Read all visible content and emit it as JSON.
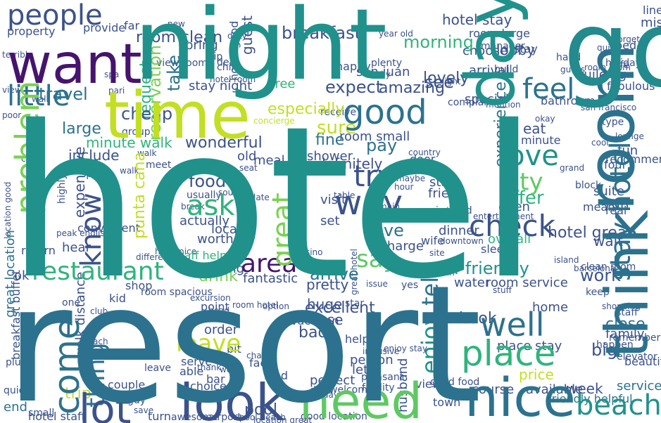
{
  "palette": {
    "purple": "#46146e",
    "indigo": "#3b528b",
    "blue": "#2c728e",
    "teal": "#21918c",
    "green": "#2fb47c",
    "lime": "#7ad151",
    "yellow": "#bddf26",
    "bright_yellow": "#d8e219"
  },
  "words": [
    {
      "text": "hotel",
      "color": "#21918c"
    },
    {
      "text": "resort",
      "color": "#2c728e"
    },
    {
      "text": "night",
      "color": "#21918c"
    },
    {
      "text": "time",
      "color": "#c2df23"
    },
    {
      "text": "want",
      "color": "#46146e"
    },
    {
      "text": "go",
      "color": "#238a8d"
    },
    {
      "text": "day",
      "color": "#21918c"
    },
    {
      "text": "room",
      "color": "#2c728e"
    },
    {
      "text": "think",
      "color": "#2c728e"
    },
    {
      "text": "stay hotel",
      "color": "#2c728e"
    },
    {
      "text": "people",
      "color": "#3b528b"
    },
    {
      "text": "good",
      "color": "#2c728e"
    },
    {
      "text": "problem",
      "color": "#7ad151"
    },
    {
      "text": "little",
      "color": "#2c728e"
    },
    {
      "text": "look",
      "color": "#3b528b"
    },
    {
      "text": "need",
      "color": "#5ec962"
    },
    {
      "text": "nice",
      "color": "#2c728e"
    },
    {
      "text": "lot",
      "color": "#3b528b"
    },
    {
      "text": "come",
      "color": "#2c728e"
    },
    {
      "text": "place",
      "color": "#2fb47c"
    },
    {
      "text": "well",
      "color": "#2c728e"
    },
    {
      "text": "beach",
      "color": "#21918c"
    },
    {
      "text": "check",
      "color": "#3b528b"
    },
    {
      "text": "restaurant",
      "color": "#2fb47c"
    },
    {
      "text": "great",
      "color": "#7ad151"
    },
    {
      "text": "way",
      "color": "#3b528b"
    },
    {
      "text": "try",
      "color": "#3b528b"
    },
    {
      "text": "ask",
      "color": "#2fb47c"
    },
    {
      "text": "area",
      "color": "#46146e"
    },
    {
      "text": "say",
      "color": "#5ec962"
    },
    {
      "text": "love",
      "color": "#21918c"
    },
    {
      "text": "feel",
      "color": "#2c728e"
    },
    {
      "text": "city",
      "color": "#5ec962"
    },
    {
      "text": "know",
      "color": "#3b528b"
    },
    {
      "text": "thing",
      "color": "#2c728e"
    },
    {
      "text": "enjoy",
      "color": "#21918c"
    },
    {
      "text": "tell",
      "color": "#2c728e"
    },
    {
      "text": "leave",
      "color": "#c2df23"
    },
    {
      "text": "staff friendly",
      "color": "#21918c"
    },
    {
      "text": "breakfast",
      "color": "#3b528b"
    },
    {
      "text": "room clean",
      "color": "#3b528b"
    },
    {
      "text": "morning",
      "color": "#2fb47c"
    },
    {
      "text": "hotel stay",
      "color": "#3b528b"
    },
    {
      "text": "lobby",
      "color": "#3b528b"
    },
    {
      "text": "see",
      "color": "#3b528b"
    },
    {
      "text": "lovely",
      "color": "#3b528b"
    },
    {
      "text": "expect",
      "color": "#3b528b"
    },
    {
      "text": "amazing",
      "color": "#3b528b"
    },
    {
      "text": "stay night",
      "color": "#3b528b"
    },
    {
      "text": "take",
      "color": "#2c728e"
    },
    {
      "text": "travel",
      "color": "#2c728e"
    },
    {
      "text": "cheap",
      "color": "#3b528b"
    },
    {
      "text": "large",
      "color": "#2c728e"
    },
    {
      "text": "reservation",
      "color": "#7ad151"
    },
    {
      "text": "request",
      "color": "#2fb47c"
    },
    {
      "text": "especially",
      "color": "#c2df23"
    },
    {
      "text": "sure",
      "color": "#c2df23"
    },
    {
      "text": "fine",
      "color": "#2c728e"
    },
    {
      "text": "room small",
      "color": "#3b528b"
    },
    {
      "text": "minute walk",
      "color": "#2fb47c"
    },
    {
      "text": "wonderful",
      "color": "#3b528b"
    },
    {
      "text": "include",
      "color": "#3b528b"
    },
    {
      "text": "pay",
      "color": "#2c728e"
    },
    {
      "text": "definitely",
      "color": "#3b528b"
    },
    {
      "text": "experience",
      "color": "#2c728e"
    },
    {
      "text": "food",
      "color": "#3b528b"
    },
    {
      "text": "offer",
      "color": "#2fb47c"
    },
    {
      "text": "open",
      "color": "#3b528b"
    },
    {
      "text": "punta cana",
      "color": "#c2df23"
    },
    {
      "text": "hotel great",
      "color": "#3b528b"
    },
    {
      "text": "give",
      "color": "#2c728e"
    },
    {
      "text": "arrive",
      "color": "#2c728e"
    },
    {
      "text": "great location",
      "color": "#2c728e"
    },
    {
      "text": "drink",
      "color": "#7ad151"
    },
    {
      "text": "work",
      "color": "#3b528b"
    },
    {
      "text": "water",
      "color": "#3b528b"
    },
    {
      "text": "room service",
      "color": "#3b528b"
    },
    {
      "text": "excellent",
      "color": "#3b528b"
    },
    {
      "text": "use",
      "color": "#3b528b"
    },
    {
      "text": "book",
      "color": "#3b528b"
    },
    {
      "text": "close",
      "color": "#2c728e"
    },
    {
      "text": "big",
      "color": "#3b528b"
    },
    {
      "text": "place stay",
      "color": "#3b528b"
    },
    {
      "text": "price",
      "color": "#c2df23"
    },
    {
      "text": "week",
      "color": "#3b528b"
    },
    {
      "text": "service",
      "color": "#2c728e"
    },
    {
      "text": "friendly helpful",
      "color": "#2c728e"
    },
    {
      "text": "hotel staff",
      "color": "#3b528b"
    },
    {
      "text": "small",
      "color": "#3b528b"
    },
    {
      "text": "end",
      "color": "#2c728e"
    },
    {
      "text": "trip",
      "color": "#c2df23"
    },
    {
      "text": "pool",
      "color": "#3b528b"
    },
    {
      "text": "kind",
      "color": "#3b528b"
    },
    {
      "text": "choice",
      "color": "#3b528b"
    },
    {
      "text": "bad",
      "color": "#3b528b"
    },
    {
      "text": "order",
      "color": "#3b528b"
    },
    {
      "text": "vacation",
      "color": "#3b528b"
    },
    {
      "text": "fantastic",
      "color": "#3b528b"
    },
    {
      "text": "pretty",
      "color": "#3b528b"
    },
    {
      "text": "huge",
      "color": "#3b528b"
    },
    {
      "text": "evening",
      "color": "#3b528b"
    },
    {
      "text": "suite",
      "color": "#3b528b"
    },
    {
      "text": "run",
      "color": "#3b528b"
    },
    {
      "text": "wait",
      "color": "#3b528b"
    },
    {
      "text": "sleep",
      "color": "#3b528b"
    },
    {
      "text": "overall",
      "color": "#2fb47c"
    },
    {
      "text": "charge",
      "color": "#3b528b"
    },
    {
      "text": "visit",
      "color": "#3b528b"
    },
    {
      "text": "start",
      "color": "#3b528b"
    },
    {
      "text": "friend",
      "color": "#3b528b"
    },
    {
      "text": "shower",
      "color": "#3b528b"
    },
    {
      "text": "meal",
      "color": "#3b528b"
    },
    {
      "text": "old",
      "color": "#3b528b"
    },
    {
      "text": "local",
      "color": "#3b528b"
    },
    {
      "text": "worth",
      "color": "#3b528b"
    },
    {
      "text": "actually",
      "color": "#3b528b"
    },
    {
      "text": "expensive",
      "color": "#3b528b"
    },
    {
      "text": "convenient",
      "color": "#3b528b"
    },
    {
      "text": "walk distance",
      "color": "#3b528b"
    },
    {
      "text": "kid",
      "color": "#3b528b"
    },
    {
      "text": "shop",
      "color": "#3b528b"
    },
    {
      "text": "ok",
      "color": "#3b528b"
    },
    {
      "text": "return",
      "color": "#3b528b"
    },
    {
      "text": "hear",
      "color": "#3b528b"
    },
    {
      "text": "couple",
      "color": "#3b528b"
    },
    {
      "text": "able",
      "color": "#3b528b"
    },
    {
      "text": "bit",
      "color": "#3b528b"
    },
    {
      "text": "fact",
      "color": "#3b528b"
    },
    {
      "text": "bar",
      "color": "#3b528b"
    },
    {
      "text": "point",
      "color": "#3b528b"
    },
    {
      "text": "person",
      "color": "#3b528b"
    },
    {
      "text": "let",
      "color": "#3b528b"
    },
    {
      "text": "course",
      "color": "#3b528b"
    },
    {
      "text": "available",
      "color": "#3b528b"
    },
    {
      "text": "home",
      "color": "#3b528b"
    },
    {
      "text": "family",
      "color": "#3b528b"
    },
    {
      "text": "bathroom",
      "color": "#3b528b"
    },
    {
      "text": "eat",
      "color": "#3b528b"
    },
    {
      "text": "fun",
      "color": "#3b528b"
    },
    {
      "text": "recommend",
      "color": "#3b528b"
    },
    {
      "text": "building",
      "color": "#3b528b"
    },
    {
      "text": "fabulous",
      "color": "#3b528b"
    },
    {
      "text": "choose",
      "color": "#3b528b"
    },
    {
      "text": "arrival",
      "color": "#3b528b"
    },
    {
      "text": "special",
      "color": "#3b528b"
    },
    {
      "text": "free",
      "color": "#2fb47c"
    },
    {
      "text": "dinner",
      "color": "#3b528b"
    },
    {
      "text": "set",
      "color": "#3b528b"
    },
    {
      "text": "wife",
      "color": "#3b528b"
    },
    {
      "text": "bring",
      "color": "#3b528b"
    },
    {
      "text": "guest",
      "color": "#3b528b"
    },
    {
      "text": "far",
      "color": "#3b528b"
    },
    {
      "text": "provide",
      "color": "#3b528b"
    },
    {
      "text": "property",
      "color": "#3b528b"
    },
    {
      "text": "happy",
      "color": "#3b528b"
    },
    {
      "text": "san juan",
      "color": "#3b528b"
    },
    {
      "text": "hotel good",
      "color": "#3b528b"
    },
    {
      "text": "room large",
      "color": "#3b528b"
    },
    {
      "text": "bed",
      "color": "#3b528b"
    },
    {
      "text": "miss",
      "color": "#3b528b"
    },
    {
      "text": "line",
      "color": "#3b528b"
    },
    {
      "text": "hand",
      "color": "#3b528b"
    },
    {
      "text": "safe",
      "color": "#3b528b"
    },
    {
      "text": "stuff",
      "color": "#3b528b"
    },
    {
      "text": "website",
      "color": "#3b528b"
    },
    {
      "text": "country",
      "color": "#3b528b"
    },
    {
      "text": "keep",
      "color": "#3b528b"
    },
    {
      "text": "shopping",
      "color": "#3b528b"
    },
    {
      "text": "elevator",
      "color": "#3b528b"
    },
    {
      "text": "beautiful",
      "color": "#3b528b"
    },
    {
      "text": "clean room",
      "color": "#3b528b"
    },
    {
      "text": "barcelona",
      "color": "#3b528b"
    },
    {
      "text": "room spacious",
      "color": "#3b528b"
    },
    {
      "text": "staff",
      "color": "#3b528b"
    },
    {
      "text": "happen",
      "color": "#3b528b"
    },
    {
      "text": "remember",
      "color": "#3b528b"
    },
    {
      "text": "perfect",
      "color": "#3b528b"
    },
    {
      "text": "husband",
      "color": "#3b528b"
    },
    {
      "text": "view",
      "color": "#3b528b"
    },
    {
      "text": "town",
      "color": "#3b528b"
    },
    {
      "text": "serve",
      "color": "#3b528b"
    },
    {
      "text": "good location",
      "color": "#3b528b"
    },
    {
      "text": "pool beach",
      "color": "#3b528b"
    },
    {
      "text": "turn",
      "color": "#3b528b"
    },
    {
      "text": "awesome",
      "color": "#3b528b"
    },
    {
      "text": "airport",
      "color": "#3b528b"
    },
    {
      "text": "location great",
      "color": "#3b528b"
    },
    {
      "text": "facility",
      "color": "#3b528b"
    },
    {
      "text": "good food",
      "color": "#3b528b"
    },
    {
      "text": "star",
      "color": "#3b528b"
    },
    {
      "text": "breakfast buffet",
      "color": "#3b528b"
    },
    {
      "text": "plu",
      "color": "#3b528b"
    },
    {
      "text": "quiet",
      "color": "#3b528b"
    },
    {
      "text": "guy",
      "color": "#3b528b"
    },
    {
      "text": "save",
      "color": "#3b528b"
    },
    {
      "text": "pleasant",
      "color": "#3b528b"
    },
    {
      "text": "desk",
      "color": "#3b528b"
    },
    {
      "text": "welcome",
      "color": "#3b528b"
    },
    {
      "text": "great hotel",
      "color": "#3b528b"
    },
    {
      "text": "staff helpful",
      "color": "#2fb47c"
    },
    {
      "text": "spend",
      "color": "#3b528b"
    },
    {
      "text": "probably",
      "color": "#3b528b"
    },
    {
      "text": "highly",
      "color": "#3b528b"
    },
    {
      "text": "location good",
      "color": "#3b528b"
    },
    {
      "text": "peak english",
      "color": "#3b528b"
    },
    {
      "text": "instead",
      "color": "#3b528b"
    },
    {
      "text": "entertainment",
      "color": "#3b528b"
    },
    {
      "text": "club",
      "color": "#3b528b"
    },
    {
      "text": "one",
      "color": "#3b528b"
    },
    {
      "text": "usually",
      "color": "#3b528b"
    },
    {
      "text": "sound",
      "color": "#3b528b"
    },
    {
      "text": "meet",
      "color": "#3b528b"
    },
    {
      "text": "late",
      "color": "#3b528b"
    },
    {
      "text": "year old",
      "color": "#3b528b"
    },
    {
      "text": "plenty",
      "color": "#3b528b"
    },
    {
      "text": "light",
      "color": "#3b528b"
    },
    {
      "text": "manager",
      "color": "#3b528b"
    },
    {
      "text": "deal",
      "color": "#3b528b"
    },
    {
      "text": "view room",
      "color": "#3b528b"
    },
    {
      "text": "quick",
      "color": "#3b528b"
    },
    {
      "text": "holiday",
      "color": "#3b528b"
    },
    {
      "text": "child",
      "color": "#3b528b"
    },
    {
      "text": "tip",
      "color": "#3b528b"
    },
    {
      "text": "complain",
      "color": "#3b528b"
    },
    {
      "text": "mention",
      "color": "#3b528b"
    },
    {
      "text": "okay",
      "color": "#3b528b"
    },
    {
      "text": "type",
      "color": "#3b528b"
    },
    {
      "text": "lounge",
      "color": "#3b528b"
    },
    {
      "text": "cool",
      "color": "#3b528b"
    },
    {
      "text": "grand",
      "color": "#3b528b"
    },
    {
      "text": "block",
      "color": "#3b528b"
    },
    {
      "text": "real",
      "color": "#3b528b"
    },
    {
      "text": "four",
      "color": "#3b528b"
    },
    {
      "text": "mean",
      "color": "#3b528b"
    },
    {
      "text": "minute",
      "color": "#3b528b"
    },
    {
      "text": "receive",
      "color": "#3b528b"
    },
    {
      "text": "concierge",
      "color": "#c2df23"
    },
    {
      "text": "group",
      "color": "#3b528b"
    },
    {
      "text": "stay",
      "color": "#3b528b"
    },
    {
      "text": "easily",
      "color": "#3b528b"
    },
    {
      "text": "dirty",
      "color": "#3b528b"
    },
    {
      "text": "guess",
      "color": "#3b528b"
    },
    {
      "text": "forget",
      "color": "#3b528b"
    },
    {
      "text": "build",
      "color": "#3b528b"
    },
    {
      "text": "room room",
      "color": "#3b528b"
    },
    {
      "text": "san francisco",
      "color": "#3b528b"
    },
    {
      "text": "walk",
      "color": "#3b528b"
    },
    {
      "text": "hotel room",
      "color": "#3b528b"
    },
    {
      "text": "room hotel",
      "color": "#3b528b"
    },
    {
      "text": "excursion",
      "color": "#3b528b"
    },
    {
      "text": "break",
      "color": "#3b528b"
    },
    {
      "text": "table",
      "color": "#3b528b"
    },
    {
      "text": "reach",
      "color": "#3b528b"
    },
    {
      "text": "pari",
      "color": "#3b528b"
    },
    {
      "text": "spa",
      "color": "#3b528b"
    },
    {
      "text": "terrible",
      "color": "#3b528b"
    },
    {
      "text": "view",
      "color": "#3b528b"
    },
    {
      "text": "new",
      "color": "#3b528b"
    },
    {
      "text": "poor",
      "color": "#3b528b"
    },
    {
      "text": "wall",
      "color": "#3b528b"
    },
    {
      "text": "case",
      "color": "#3b528b"
    },
    {
      "text": "yes",
      "color": "#3b528b"
    },
    {
      "text": "issue",
      "color": "#3b528b"
    },
    {
      "text": "site",
      "color": "#3b528b"
    },
    {
      "text": "casino",
      "color": "#3b528b"
    },
    {
      "text": "change",
      "color": "#3b528b"
    },
    {
      "text": "option",
      "color": "#3b528b"
    },
    {
      "text": "head",
      "color": "#3b528b"
    },
    {
      "text": "thank",
      "color": "#3b528b"
    },
    {
      "text": "worry",
      "color": "#3b528b"
    },
    {
      "text": "inclusive",
      "color": "#3b528b"
    },
    {
      "text": "help",
      "color": "#3b528b"
    },
    {
      "text": "enjoy stay",
      "color": "#3b528b"
    },
    {
      "text": "leave",
      "color": "#3b528b"
    },
    {
      "text": "everyday",
      "color": "#3b528b"
    },
    {
      "text": "different",
      "color": "#3b528b"
    },
    {
      "text": "seat",
      "color": "#3b528b"
    },
    {
      "text": "door",
      "color": "#3b528b"
    },
    {
      "text": "main",
      "color": "#3b528b"
    },
    {
      "text": "maybe",
      "color": "#3b528b"
    },
    {
      "text": "hour",
      "color": "#3b528b"
    },
    {
      "text": "hotel nice",
      "color": "#3b528b"
    },
    {
      "text": "downtown",
      "color": "#3b528b"
    },
    {
      "text": "staff",
      "color": "#3b528b"
    },
    {
      "text": "island",
      "color": "#3b528b"
    },
    {
      "text": "walk",
      "color": "#3b528b"
    }
  ]
}
